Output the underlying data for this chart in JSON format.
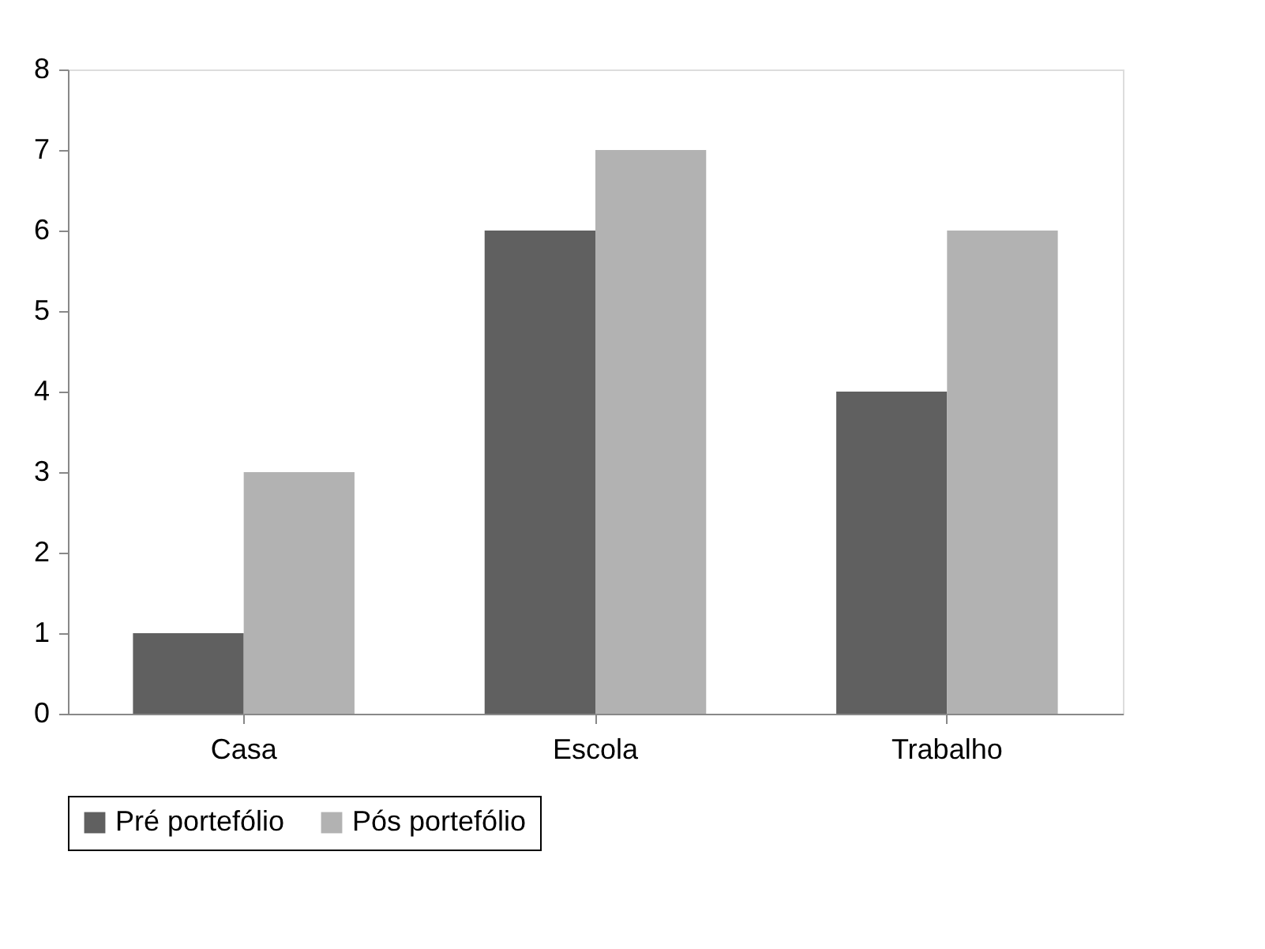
{
  "chart_data": {
    "type": "bar",
    "categories": [
      "Casa",
      "Escola",
      "Trabalho"
    ],
    "series": [
      {
        "name": "Pré portefólio",
        "color": "#606060",
        "values": [
          1,
          6,
          4
        ]
      },
      {
        "name": "Pós portefólio",
        "color": "#b2b2b2",
        "values": [
          3,
          7,
          6
        ]
      }
    ],
    "ylim": [
      0,
      8
    ],
    "yticks": [
      0,
      1,
      2,
      3,
      4,
      5,
      6,
      7,
      8
    ],
    "grid": false,
    "legend": "bottom"
  }
}
